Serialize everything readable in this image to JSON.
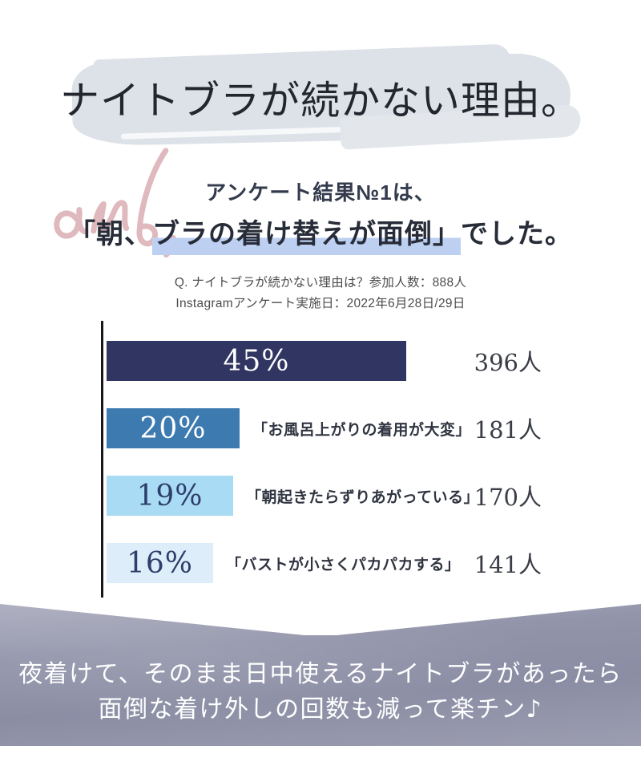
{
  "header": {
    "title": "ナイトブラが続かない理由。"
  },
  "survey": {
    "decoration_script": "ans.",
    "subtitle": "アンケート結果№1は、",
    "headline_prefix": "「朝、",
    "headline_highlight": "ブラの着け替えが面倒」",
    "headline_suffix": "でした。",
    "note_line1": "Q. ナイトブラが続かない理由は？参加人数：888人",
    "note_line2": "Instagramアンケート実施日：2022年6月28日/29日"
  },
  "chart_data": {
    "type": "bar",
    "orientation": "horizontal",
    "question": "Q. ナイトブラが続かない理由は？",
    "participants_total": 888,
    "categories": [
      "朝、ブラの着け替えが面倒",
      "お風呂上がりの着用が大変",
      "朝起きたらずりあがっている",
      "バストが小さくパカパカする"
    ],
    "values": [
      45,
      20,
      19,
      16
    ],
    "counts": [
      396,
      181,
      170,
      141
    ],
    "unit": "人",
    "grid": false,
    "legend": "none",
    "axis_color": "#17171c",
    "rows": [
      {
        "value": 45,
        "percent_label": "45%",
        "category_label": "",
        "count_label": "396人",
        "bar_color": "#303562",
        "percent_color": "#ffffff"
      },
      {
        "value": 20,
        "percent_label": "20%",
        "category_label": "「お風呂上がりの着用が大変」",
        "count_label": "181人",
        "bar_color": "#3c7ab0",
        "percent_color": "#ffffff"
      },
      {
        "value": 19,
        "percent_label": "19%",
        "category_label": "「朝起きたらずりあがっている」",
        "count_label": "170人",
        "bar_color": "#a9dbf4",
        "percent_color": "#2e3e6b"
      },
      {
        "value": 16,
        "percent_label": "16%",
        "category_label": "「バストが小さくパカパカする」",
        "count_label": "141人",
        "bar_color": "#ddedfa",
        "percent_color": "#2e3e6b"
      }
    ]
  },
  "footer": {
    "line1": "夜着けて、そのまま日中使えるナイトブラがあったら",
    "line2": "面倒な着け外しの回数も減って楽チン♪"
  },
  "theme": {
    "brush_background": "#dde2e8",
    "headline_highlight": "#bdd0f2",
    "script_pink": "#dfb9bd",
    "footer_gradient_top": "#aeafc0",
    "footer_gradient_mid": "#8b8da4",
    "footer_gradient_bottom": "#9c9db0"
  }
}
